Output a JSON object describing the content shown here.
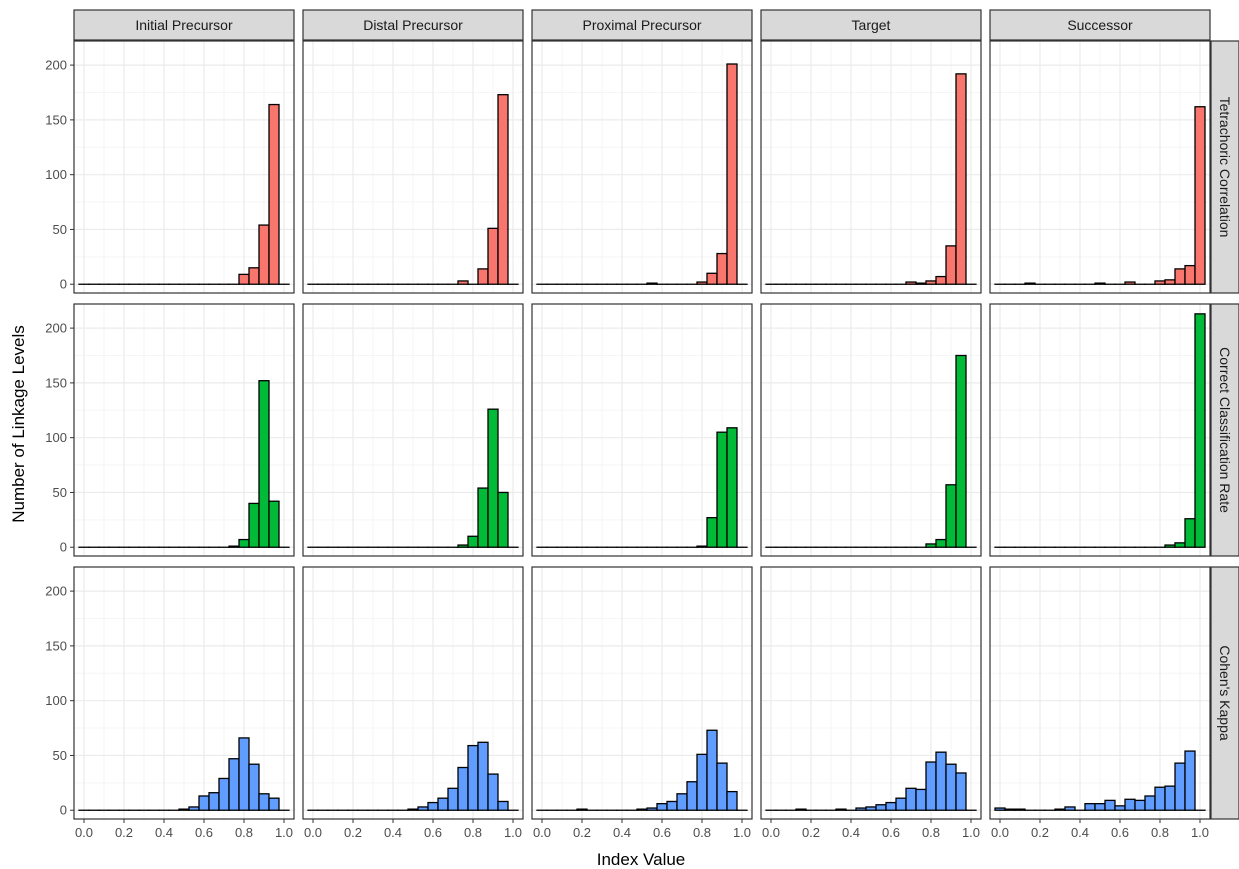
{
  "colors": {
    "tetrachoric": "#F8766D",
    "ccr": "#00BA38",
    "kappa": "#619CFF",
    "strip_fill": "#D9D9D9",
    "grid_major": "#EBEBEB",
    "grid_minor": "#F5F5F5"
  },
  "chart_data": {
    "type": "bar",
    "chart_kind": "faceted histogram",
    "xlabel": "Index Value",
    "ylabel": "Number of Linkage Levels",
    "xlim": [
      -0.05,
      1.05
    ],
    "ylim": [
      -8,
      222
    ],
    "x_ticks": [
      "0.0",
      "0.2",
      "0.4",
      "0.6",
      "0.8",
      "1.0"
    ],
    "y_ticks": [
      "0",
      "50",
      "100",
      "150",
      "200"
    ],
    "bin_width": 0.05,
    "bin_centers": [
      0.0,
      0.05,
      0.1,
      0.15,
      0.2,
      0.25,
      0.3,
      0.35,
      0.4,
      0.45,
      0.5,
      0.55,
      0.6,
      0.65,
      0.7,
      0.75,
      0.8,
      0.85,
      0.9,
      0.95,
      1.0
    ],
    "grid": true,
    "columns": [
      "Initial Precursor",
      "Distal Precursor",
      "Proximal Precursor",
      "Target",
      "Successor"
    ],
    "rows": [
      {
        "name": "Tetrachoric Correlation",
        "color_key": "tetrachoric",
        "panels": [
          [
            0,
            0,
            0,
            0,
            0,
            0,
            0,
            0,
            0,
            0,
            0,
            0,
            0,
            0,
            0,
            0,
            9,
            15,
            54,
            164,
            0
          ],
          [
            0,
            0,
            0,
            0,
            0,
            0,
            0,
            0,
            0,
            0,
            0,
            0,
            0,
            0,
            0,
            3,
            0,
            14,
            51,
            173,
            0
          ],
          [
            0,
            0,
            0,
            0,
            0,
            0,
            0,
            0,
            0,
            0,
            0,
            1,
            0,
            0,
            0,
            0,
            2,
            10,
            28,
            201,
            0
          ],
          [
            0,
            0,
            0,
            0,
            0,
            0,
            0,
            0,
            0,
            0,
            0,
            0,
            0,
            0,
            2,
            1,
            3,
            7,
            35,
            192,
            0
          ],
          [
            0,
            0,
            0,
            1,
            0,
            0,
            0,
            0,
            0,
            0,
            1,
            0,
            0,
            2,
            0,
            0,
            3,
            4,
            14,
            17,
            162
          ]
        ]
      },
      {
        "name": "Correct Classification Rate",
        "color_key": "ccr",
        "panels": [
          [
            0,
            0,
            0,
            0,
            0,
            0,
            0,
            0,
            0,
            0,
            0,
            0,
            0,
            0,
            0,
            1,
            7,
            40,
            152,
            42,
            0
          ],
          [
            0,
            0,
            0,
            0,
            0,
            0,
            0,
            0,
            0,
            0,
            0,
            0,
            0,
            0,
            0,
            2,
            10,
            54,
            126,
            50,
            0
          ],
          [
            0,
            0,
            0,
            0,
            0,
            0,
            0,
            0,
            0,
            0,
            0,
            0,
            0,
            0,
            0,
            0,
            1,
            27,
            105,
            109,
            0
          ],
          [
            0,
            0,
            0,
            0,
            0,
            0,
            0,
            0,
            0,
            0,
            0,
            0,
            0,
            0,
            0,
            0,
            3,
            7,
            57,
            175,
            0
          ],
          [
            0,
            0,
            0,
            0,
            0,
            0,
            0,
            0,
            0,
            0,
            0,
            0,
            0,
            0,
            0,
            0,
            0,
            2,
            4,
            26,
            213
          ]
        ]
      },
      {
        "name": "Cohen's Kappa",
        "color_key": "kappa",
        "panels": [
          [
            0,
            0,
            0,
            0,
            0,
            0,
            0,
            0,
            0,
            0,
            1,
            3,
            13,
            16,
            29,
            47,
            66,
            42,
            15,
            11,
            0
          ],
          [
            0,
            0,
            0,
            0,
            0,
            0,
            0,
            0,
            0,
            0,
            1,
            3,
            7,
            11,
            20,
            39,
            59,
            62,
            33,
            8,
            0
          ],
          [
            0,
            0,
            0,
            0,
            1,
            0,
            0,
            0,
            0,
            0,
            1,
            2,
            6,
            8,
            15,
            26,
            51,
            73,
            43,
            17,
            0
          ],
          [
            0,
            0,
            0,
            1,
            0,
            0,
            0,
            1,
            0,
            2,
            3,
            5,
            7,
            11,
            20,
            19,
            44,
            53,
            42,
            34,
            0
          ],
          [
            2,
            1,
            1,
            0,
            0,
            0,
            1,
            3,
            0,
            6,
            6,
            9,
            4,
            10,
            9,
            13,
            21,
            22,
            43,
            54,
            0
          ]
        ]
      }
    ]
  }
}
